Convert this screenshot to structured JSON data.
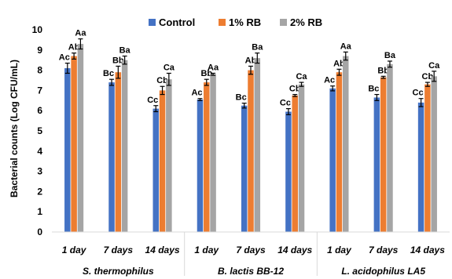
{
  "chart_data": {
    "type": "bar",
    "ylabel": "Bacterial counts (Log CFU/mL)",
    "ylim": [
      0,
      10
    ],
    "yticks": [
      0,
      1,
      2,
      3,
      4,
      5,
      6,
      7,
      8,
      9,
      10
    ],
    "grid": false,
    "legend_position": "top",
    "groups": [
      {
        "label": "S. thermophilus",
        "categories": [
          "1 day",
          "7 days",
          "14 days"
        ]
      },
      {
        "label": "B. lactis BB-12",
        "categories": [
          "1 day",
          "7 days",
          "14 days"
        ]
      },
      {
        "label": "L. acidophilus LA5",
        "categories": [
          "1 day",
          "7 days",
          "14 days"
        ]
      }
    ],
    "series": [
      {
        "name": "Control",
        "color": "#4472C4",
        "values": [
          8.1,
          7.4,
          6.1,
          6.55,
          6.25,
          5.95,
          7.1,
          6.65,
          6.4
        ],
        "errors": [
          0.25,
          0.15,
          0.15,
          0.05,
          0.12,
          0.15,
          0.12,
          0.15,
          0.2
        ],
        "labels": [
          "Ac",
          "Bc",
          "Cc",
          "Ac",
          "Bc",
          "Cc",
          "Ac",
          "Bc",
          "Cc"
        ]
      },
      {
        "name": "1% RB",
        "color": "#ED7D31",
        "values": [
          8.7,
          7.9,
          7.0,
          7.4,
          8.0,
          6.75,
          7.9,
          7.65,
          7.3
        ],
        "errors": [
          0.15,
          0.3,
          0.2,
          0.15,
          0.2,
          0.05,
          0.15,
          0.05,
          0.1
        ],
        "labels": [
          "Ab",
          "Bb",
          "Cb",
          "Bb",
          "Ab",
          "Cb",
          "Ab",
          "Bb",
          "Cb"
        ]
      },
      {
        "name": "2% RB",
        "color": "#A5A5A5",
        "values": [
          9.3,
          8.5,
          7.55,
          7.8,
          8.6,
          7.3,
          8.7,
          8.3,
          7.7
        ],
        "errors": [
          0.25,
          0.2,
          0.3,
          0.05,
          0.25,
          0.1,
          0.2,
          0.15,
          0.25
        ],
        "labels": [
          "Aa",
          "Ba",
          "Ca",
          "Aa",
          "Ba",
          "Ca",
          "Aa",
          "Ba",
          "Ca"
        ]
      }
    ]
  }
}
